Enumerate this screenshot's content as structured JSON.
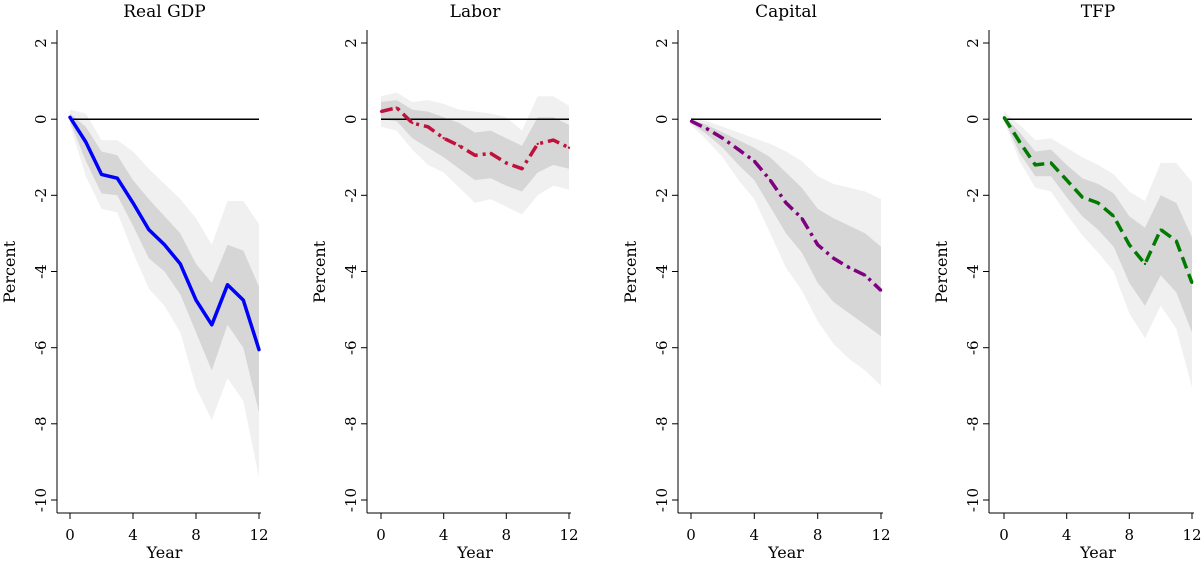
{
  "chart_data": [
    {
      "type": "line",
      "title": "Real GDP",
      "xlabel": "Year",
      "ylabel": "Percent",
      "xlim": [
        0,
        12
      ],
      "ylim": [
        -10,
        2
      ],
      "xticks": [
        "0",
        "4",
        "8",
        "12"
      ],
      "yticks": [
        "-10",
        "-8",
        "-6",
        "-4",
        "-2",
        "0",
        "2"
      ],
      "x": [
        0,
        1,
        2,
        3,
        4,
        5,
        6,
        7,
        8,
        9,
        10,
        11,
        12
      ],
      "series": [
        {
          "values": [
            0.05,
            -0.6,
            -1.45,
            -1.55,
            -2.2,
            -2.9,
            -3.3,
            -3.8,
            -4.75,
            -5.4,
            -4.35,
            -4.75,
            -6.05
          ],
          "color": "#0000ff",
          "style": "solid",
          "band_inner": {
            "lower": [
              -0.05,
              -1.1,
              -1.95,
              -2.0,
              -2.8,
              -3.65,
              -4.0,
              -4.6,
              -5.6,
              -6.6,
              -5.4,
              -6.0,
              -7.7
            ],
            "upper": [
              0.15,
              -0.2,
              -0.85,
              -0.95,
              -1.6,
              -2.1,
              -2.55,
              -3.0,
              -3.8,
              -4.3,
              -3.3,
              -3.45,
              -4.4
            ]
          },
          "band_outer": {
            "lower": [
              -0.15,
              -1.5,
              -2.35,
              -2.45,
              -3.5,
              -4.45,
              -4.9,
              -5.6,
              -7.05,
              -7.9,
              -6.8,
              -7.4,
              -9.4
            ],
            "upper": [
              0.25,
              0.15,
              -0.55,
              -0.55,
              -0.85,
              -1.3,
              -1.7,
              -2.1,
              -2.6,
              -3.3,
              -2.15,
              -2.15,
              -2.75
            ]
          }
        }
      ]
    },
    {
      "type": "line",
      "title": "Labor",
      "xlabel": "Year",
      "ylabel": "Percent",
      "xlim": [
        0,
        12
      ],
      "ylim": [
        -10,
        2
      ],
      "xticks": [
        "0",
        "4",
        "8",
        "12"
      ],
      "yticks": [
        "-10",
        "-8",
        "-6",
        "-4",
        "-2",
        "0",
        "2"
      ],
      "x": [
        0,
        1,
        2,
        3,
        4,
        5,
        6,
        7,
        8,
        9,
        10,
        11,
        12
      ],
      "series": [
        {
          "values": [
            0.2,
            0.3,
            -0.1,
            -0.2,
            -0.5,
            -0.7,
            -0.95,
            -0.9,
            -1.15,
            -1.3,
            -0.65,
            -0.55,
            -0.75
          ],
          "color": "#c0103c",
          "style": "dashdot",
          "band_inner": {
            "lower": [
              0.0,
              -0.05,
              -0.5,
              -0.75,
              -1.0,
              -1.3,
              -1.6,
              -1.55,
              -1.75,
              -1.9,
              -1.4,
              -1.2,
              -1.3
            ],
            "upper": [
              0.45,
              0.5,
              0.25,
              0.2,
              0.05,
              -0.1,
              -0.35,
              -0.3,
              -0.5,
              -0.7,
              0.05,
              0.05,
              -0.15
            ]
          },
          "band_outer": {
            "lower": [
              -0.2,
              -0.3,
              -0.8,
              -1.2,
              -1.4,
              -1.8,
              -2.2,
              -2.1,
              -2.3,
              -2.5,
              -2.0,
              -1.75,
              -1.85
            ],
            "upper": [
              0.6,
              0.7,
              0.45,
              0.5,
              0.4,
              0.25,
              0.2,
              0.15,
              0.05,
              -0.3,
              0.6,
              0.6,
              0.35
            ]
          }
        }
      ]
    },
    {
      "type": "line",
      "title": "Capital",
      "xlabel": "Year",
      "ylabel": "Percent",
      "xlim": [
        0,
        12
      ],
      "ylim": [
        -10,
        2
      ],
      "xticks": [
        "0",
        "4",
        "8",
        "12"
      ],
      "yticks": [
        "-10",
        "-8",
        "-6",
        "-4",
        "-2",
        "0",
        "2"
      ],
      "x": [
        0,
        1,
        2,
        3,
        4,
        5,
        6,
        7,
        8,
        9,
        10,
        11,
        12
      ],
      "series": [
        {
          "values": [
            -0.05,
            -0.25,
            -0.5,
            -0.8,
            -1.1,
            -1.6,
            -2.2,
            -2.6,
            -3.3,
            -3.65,
            -3.9,
            -4.1,
            -4.5
          ],
          "color": "#800080",
          "style": "dashdot",
          "band_inner": {
            "lower": [
              -0.1,
              -0.4,
              -0.75,
              -1.2,
              -1.6,
              -2.3,
              -3.0,
              -3.5,
              -4.3,
              -4.8,
              -5.1,
              -5.4,
              -5.7
            ],
            "upper": [
              0.0,
              -0.15,
              -0.35,
              -0.55,
              -0.75,
              -1.0,
              -1.4,
              -1.8,
              -2.35,
              -2.6,
              -2.8,
              -3.0,
              -3.35
            ]
          },
          "band_outer": {
            "lower": [
              -0.15,
              -0.55,
              -1.0,
              -1.6,
              -2.1,
              -3.0,
              -3.9,
              -4.5,
              -5.3,
              -5.9,
              -6.3,
              -6.6,
              -7.0
            ],
            "upper": [
              0.05,
              -0.05,
              -0.2,
              -0.35,
              -0.5,
              -0.65,
              -0.85,
              -1.1,
              -1.5,
              -1.7,
              -1.8,
              -1.9,
              -2.1
            ]
          }
        }
      ]
    },
    {
      "type": "line",
      "title": "TFP",
      "xlabel": "Year",
      "ylabel": "Percent",
      "xlim": [
        0,
        12
      ],
      "ylim": [
        -10,
        2
      ],
      "xticks": [
        "0",
        "4",
        "8",
        "12"
      ],
      "yticks": [
        "-10",
        "-8",
        "-6",
        "-4",
        "-2",
        "0",
        "2"
      ],
      "x": [
        0,
        1,
        2,
        3,
        4,
        5,
        6,
        7,
        8,
        9,
        10,
        11,
        12
      ],
      "series": [
        {
          "values": [
            0.05,
            -0.6,
            -1.2,
            -1.15,
            -1.6,
            -2.05,
            -2.2,
            -2.55,
            -3.3,
            -3.8,
            -2.9,
            -3.2,
            -4.3
          ],
          "color": "#007a00",
          "style": "dashed",
          "band_inner": {
            "lower": [
              0.0,
              -0.9,
              -1.5,
              -1.5,
              -2.05,
              -2.55,
              -2.9,
              -3.35,
              -4.3,
              -4.9,
              -4.1,
              -4.55,
              -5.6
            ],
            "upper": [
              0.1,
              -0.35,
              -0.85,
              -0.8,
              -1.2,
              -1.55,
              -1.7,
              -1.95,
              -2.55,
              -2.85,
              -2.0,
              -2.2,
              -3.1
            ]
          },
          "band_outer": {
            "lower": [
              -0.05,
              -1.1,
              -1.8,
              -1.9,
              -2.5,
              -3.05,
              -3.5,
              -4.0,
              -5.1,
              -5.75,
              -4.9,
              -5.5,
              -7.05
            ],
            "upper": [
              0.2,
              -0.15,
              -0.55,
              -0.5,
              -0.75,
              -1.0,
              -1.2,
              -1.45,
              -1.9,
              -2.15,
              -1.15,
              -1.15,
              -1.65
            ]
          }
        }
      ]
    }
  ]
}
